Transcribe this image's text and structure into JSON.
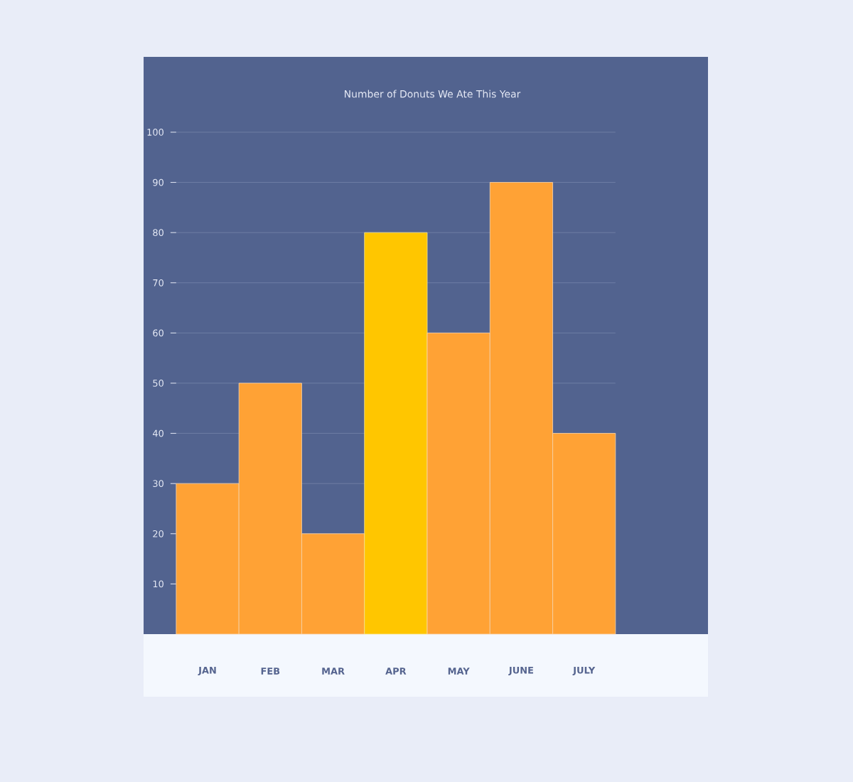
{
  "chart_data": {
    "type": "bar",
    "title": "Number of Donuts We Ate This Year",
    "categories": [
      "JAN",
      "FEB",
      "MAR",
      "APR",
      "MAY",
      "JUNE",
      "JULY"
    ],
    "values": [
      30,
      50,
      20,
      80,
      60,
      90,
      40
    ],
    "colors": [
      "#ffa235",
      "#ffa235",
      "#ffa235",
      "#ffc600",
      "#ffa235",
      "#ffa235",
      "#ffa235"
    ],
    "ylim": [
      0,
      100
    ],
    "yticks": [
      10,
      20,
      30,
      40,
      50,
      60,
      70,
      80,
      90,
      100
    ],
    "grid": "y"
  }
}
